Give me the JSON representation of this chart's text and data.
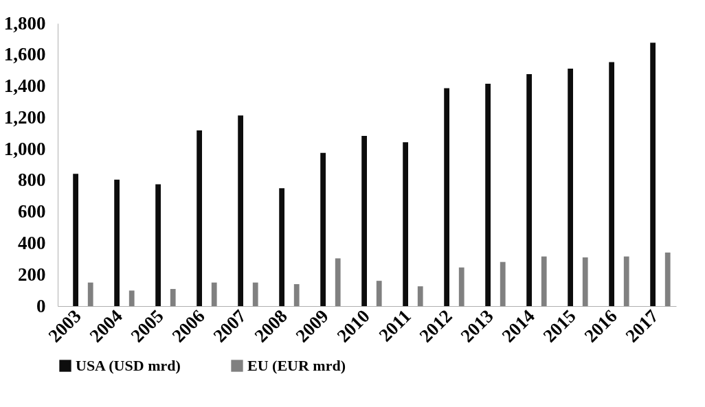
{
  "chart_data": {
    "type": "bar",
    "categories": [
      "2003",
      "2004",
      "2005",
      "2006",
      "2007",
      "2008",
      "2009",
      "2010",
      "2011",
      "2012",
      "2013",
      "2014",
      "2015",
      "2016",
      "2017"
    ],
    "series": [
      {
        "name": "USA (USD mrd)",
        "color": "#0d0d0d",
        "values": [
          842,
          805,
          775,
          1118,
          1213,
          750,
          975,
          1084,
          1043,
          1387,
          1415,
          1477,
          1512,
          1553,
          1677
        ]
      },
      {
        "name": "EU (EUR mrd)",
        "color": "#808080",
        "values": [
          150,
          99,
          109,
          150,
          150,
          140,
          304,
          161,
          126,
          246,
          281,
          316,
          310,
          316,
          341
        ]
      }
    ],
    "ylim": [
      0,
      1800
    ],
    "yticks": [
      0,
      200,
      400,
      600,
      800,
      {
        "value": 1000,
        "label": "1,000"
      },
      {
        "value": 1200,
        "label": "1,200"
      },
      {
        "value": 1400,
        "label": "1,400"
      },
      {
        "value": 1600,
        "label": "1,600"
      },
      {
        "value": 1800,
        "label": "1,800"
      }
    ],
    "grid": false,
    "legend": "bottom"
  }
}
